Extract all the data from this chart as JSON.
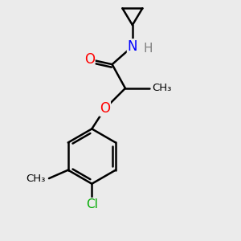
{
  "bg_color": "#ebebeb",
  "bond_color": "#000000",
  "bond_width": 1.8,
  "atom_colors": {
    "O": "#ff0000",
    "N": "#0000ff",
    "Cl": "#00aa00",
    "C": "#000000",
    "H": "#808080"
  },
  "font_size": 11,
  "fig_size": [
    3.0,
    3.0
  ],
  "dpi": 100
}
